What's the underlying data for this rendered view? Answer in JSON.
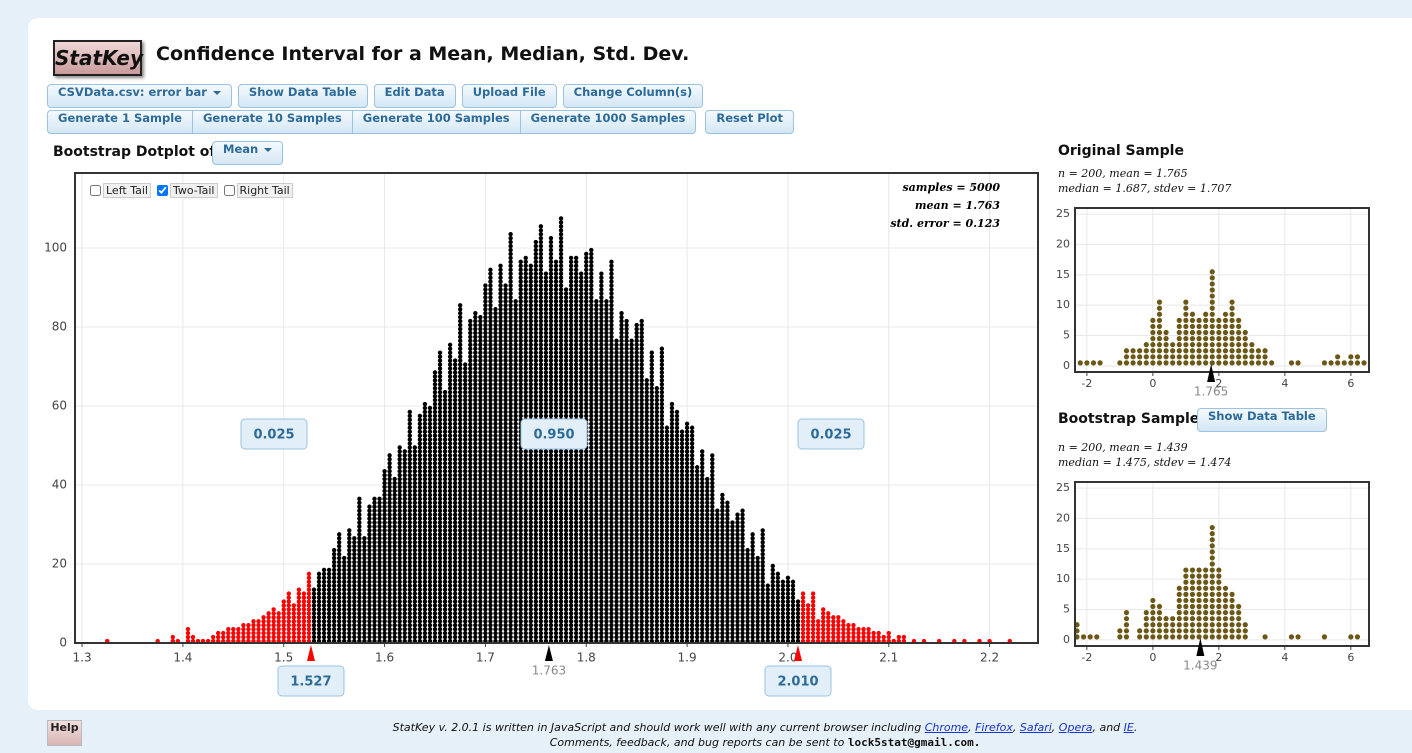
{
  "ui": {
    "logo": "StatKey",
    "title": "Confidence Interval for a Mean, Median, Std. Dev.",
    "data_menu": "CSVData.csv: error bar",
    "buttons_row1": [
      "Show Data Table",
      "Edit Data",
      "Upload File",
      "Change Column(s)"
    ],
    "buttons_row2": [
      "Generate 1 Sample",
      "Generate 10 Samples",
      "Generate 100 Samples",
      "Generate 1000 Samples"
    ],
    "reset": "Reset Plot",
    "dotplot_of": "Bootstrap Dotplot of",
    "statistic": "Mean",
    "tails": [
      {
        "label": "Left Tail",
        "checked": false
      },
      {
        "label": "Two-Tail",
        "checked": true
      },
      {
        "label": "Right Tail",
        "checked": false
      }
    ],
    "show_table2": "Show Data Table",
    "help": "Help"
  },
  "footer": {
    "line1": [
      {
        "text": "StatKey v. 2.0.1 is written in JavaScript and should work well with any current browser including "
      },
      {
        "link": "Chrome"
      },
      {
        "text": ", "
      },
      {
        "link": "Firefox"
      },
      {
        "text": ", "
      },
      {
        "link": "Safari"
      },
      {
        "text": ", "
      },
      {
        "link": "Opera"
      },
      {
        "text": ", and "
      },
      {
        "link": "IE"
      },
      {
        "text": "."
      }
    ],
    "line2": "Comments, feedback, and bug reports can be sent to",
    "email": "lock5stat@gmail.com."
  },
  "chart_data": [
    {
      "type": "dotplot",
      "stats": [
        "samples = 5000",
        "mean = 1.763",
        "std. error = 0.123"
      ],
      "x": [
        1.325,
        1.375,
        1.39,
        1.395,
        1.405,
        1.41,
        1.415,
        1.42,
        1.425,
        1.43,
        1.435,
        1.44,
        1.445,
        1.45,
        1.455,
        1.46,
        1.465,
        1.47,
        1.475,
        1.48,
        1.485,
        1.49,
        1.495,
        1.5,
        1.505,
        1.51,
        1.515,
        1.52,
        1.525,
        1.53,
        1.535,
        1.54,
        1.545,
        1.55,
        1.555,
        1.56,
        1.565,
        1.57,
        1.575,
        1.58,
        1.585,
        1.59,
        1.595,
        1.6,
        1.605,
        1.61,
        1.615,
        1.62,
        1.625,
        1.63,
        1.635,
        1.64,
        1.645,
        1.65,
        1.655,
        1.66,
        1.665,
        1.67,
        1.675,
        1.68,
        1.685,
        1.69,
        1.695,
        1.7,
        1.705,
        1.71,
        1.715,
        1.72,
        1.725,
        1.73,
        1.735,
        1.74,
        1.745,
        1.75,
        1.755,
        1.76,
        1.765,
        1.77,
        1.775,
        1.78,
        1.785,
        1.79,
        1.795,
        1.8,
        1.805,
        1.81,
        1.815,
        1.82,
        1.825,
        1.83,
        1.835,
        1.84,
        1.845,
        1.85,
        1.855,
        1.86,
        1.865,
        1.87,
        1.875,
        1.88,
        1.885,
        1.89,
        1.895,
        1.9,
        1.905,
        1.91,
        1.915,
        1.92,
        1.925,
        1.93,
        1.935,
        1.94,
        1.945,
        1.95,
        1.955,
        1.96,
        1.965,
        1.97,
        1.975,
        1.98,
        1.985,
        1.99,
        1.995,
        2,
        2.005,
        2.01,
        2.015,
        2.02,
        2.025,
        2.03,
        2.035,
        2.04,
        2.045,
        2.05,
        2.055,
        2.06,
        2.065,
        2.07,
        2.075,
        2.08,
        2.085,
        2.09,
        2.095,
        2.1,
        2.105,
        2.11,
        2.115,
        2.125,
        2.135,
        2.15,
        2.165,
        2.175,
        2.19,
        2.2,
        2.22
      ],
      "values": [
        1,
        1,
        2,
        1,
        4,
        2,
        1,
        1,
        1,
        2,
        3,
        3,
        4,
        4,
        4,
        5,
        5,
        6,
        6,
        7,
        8,
        9,
        8,
        11,
        13,
        10,
        14,
        13,
        18,
        14,
        18,
        19,
        19,
        24,
        28,
        22,
        29,
        27,
        37,
        27,
        35,
        37,
        37,
        44,
        48,
        42,
        50,
        49,
        59,
        50,
        58,
        61,
        60,
        69,
        74,
        64,
        76,
        72,
        86,
        71,
        82,
        84,
        83,
        91,
        95,
        85,
        96,
        91,
        104,
        87,
        97,
        98,
        96,
        102,
        106,
        94,
        103,
        97,
        108,
        90,
        98,
        98,
        94,
        99,
        100,
        87,
        94,
        87,
        97,
        77,
        84,
        82,
        77,
        81,
        82,
        67,
        74,
        65,
        75,
        55,
        61,
        59,
        54,
        56,
        55,
        45,
        49,
        42,
        48,
        34,
        38,
        36,
        31,
        33,
        34,
        24,
        28,
        22,
        29,
        15,
        20,
        18,
        16,
        17,
        16,
        11,
        13,
        10,
        13,
        6,
        9,
        8,
        7,
        7,
        6,
        5,
        5,
        4,
        4,
        4,
        3,
        3,
        2,
        3,
        1,
        2,
        2,
        1,
        1,
        1,
        1,
        1,
        1,
        1,
        1
      ],
      "color": "#000000",
      "tail_color": "#ff0000",
      "xlim": [
        1.293,
        2.248
      ],
      "ylim": [
        0,
        119
      ],
      "xticks": [
        1.3,
        1.4,
        1.5,
        1.6,
        1.7,
        1.8,
        1.9,
        {
          "value": 2,
          "label": "2.0"
        },
        2.1,
        2.2
      ],
      "yticks": [
        0,
        20,
        40,
        60,
        80,
        100
      ],
      "grid": true,
      "center": 1.763,
      "bounds": [
        1.527,
        {
          "value": 2.01,
          "label": "2.010"
        }
      ],
      "tail_proportions": [
        0.025,
        {
          "value": 0.95,
          "label": "0.950"
        },
        0.025
      ]
    },
    {
      "type": "dotplot",
      "title": "Original Sample",
      "stats": [
        "n = 200, mean = 1.765",
        "median = 1.687, stdev = 1.707"
      ],
      "x": [
        -2.2,
        -2,
        -1.8,
        -1.6,
        -1,
        -0.8,
        -0.6,
        -0.4,
        -0.2,
        0,
        0.2,
        0.4,
        0.6,
        0.8,
        1,
        1.2,
        1.4,
        1.6,
        1.8,
        2,
        2.2,
        2.4,
        2.6,
        2.8,
        3,
        3.2,
        3.4,
        3.6,
        4.2,
        4.4,
        5.2,
        5.4,
        5.6,
        5.8,
        6,
        6.2,
        6.4
      ],
      "values": [
        1,
        1,
        1,
        1,
        1,
        3,
        3,
        3,
        4,
        8,
        11,
        6,
        4,
        8,
        11,
        9,
        8,
        9,
        16,
        8,
        9,
        11,
        8,
        6,
        4,
        3,
        3,
        1,
        1,
        1,
        1,
        1,
        2,
        1,
        2,
        2,
        1
      ],
      "color": "#6b5716",
      "xlim": [
        -2.36,
        6.55
      ],
      "ylim": [
        -1,
        26
      ],
      "xticks": [
        -2,
        0,
        2,
        4,
        6
      ],
      "yticks": [
        0,
        5,
        10,
        15,
        20,
        25
      ],
      "grid": true,
      "center": 1.765
    },
    {
      "type": "dotplot",
      "title": "Bootstrap Sample",
      "stats": [
        "n = 200, mean = 1.439",
        "median = 1.475, stdev = 1.474"
      ],
      "x": [
        -2.3,
        -2.1,
        -1.9,
        -1.7,
        -1,
        -0.8,
        -0.4,
        -0.2,
        0,
        0.2,
        0.4,
        0.6,
        0.8,
        1,
        1.2,
        1.4,
        1.6,
        1.8,
        2,
        2.2,
        2.4,
        2.6,
        2.8,
        3.4,
        4.2,
        4.4,
        5.2,
        6,
        6.2
      ],
      "values": [
        3,
        1,
        1,
        1,
        2,
        5,
        2,
        5,
        7,
        6,
        4,
        4,
        9,
        12,
        12,
        12,
        12,
        19,
        12,
        9,
        8,
        6,
        3,
        1,
        1,
        1,
        1,
        1,
        1
      ],
      "color": "#6b5716",
      "xlim": [
        -2.36,
        6.55
      ],
      "ylim": [
        -1,
        26
      ],
      "xticks": [
        -2,
        0,
        2,
        4,
        6
      ],
      "yticks": [
        0,
        5,
        10,
        15,
        20,
        25
      ],
      "grid": true,
      "center": 1.439
    }
  ]
}
